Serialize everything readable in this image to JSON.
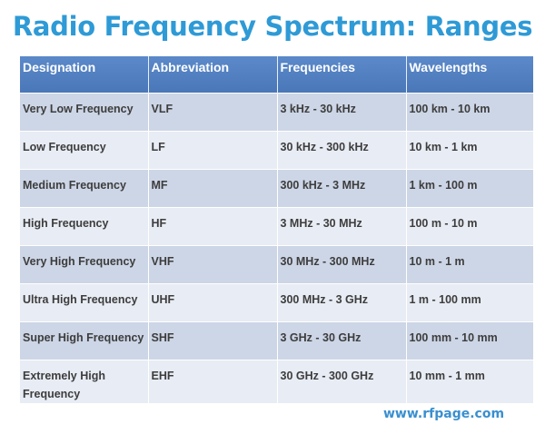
{
  "title": "Radio Frequency Spectrum: Ranges",
  "table": {
    "headers": [
      "Designation",
      "Abbreviation",
      "Frequencies",
      "Wavelengths"
    ],
    "rows": [
      [
        "Very Low Frequency",
        "VLF",
        "3 kHz - 30 kHz",
        "100 km - 10 km"
      ],
      [
        "Low Frequency",
        "LF",
        "30 kHz - 300 kHz",
        "10 km - 1 km"
      ],
      [
        "Medium Frequency",
        "MF",
        "300 kHz - 3 MHz",
        "1 km - 100 m"
      ],
      [
        "High Frequency",
        "HF",
        "3 MHz - 30 MHz",
        "100 m - 10 m"
      ],
      [
        "Very High Frequency",
        "VHF",
        "30 MHz - 300 MHz",
        "10 m - 1 m"
      ],
      [
        "Ultra High Frequency",
        "UHF",
        "300 MHz - 3 GHz",
        "1 m - 100 mm"
      ],
      [
        "Super High Frequency",
        "SHF",
        "3 GHz - 30 GHz",
        "100 mm - 10 mm"
      ],
      [
        "Extremely High Frequency",
        "EHF",
        "30 GHz - 300 GHz",
        "10 mm - 1 mm"
      ]
    ]
  },
  "footer": {
    "url": "www.rfpage.com"
  },
  "colors": {
    "title": "#2e9ad6",
    "header_bg": "#4f7fc0",
    "row_odd": "#cdd6e6",
    "row_even": "#e8ecf4",
    "footer": "#3a8fd0"
  }
}
